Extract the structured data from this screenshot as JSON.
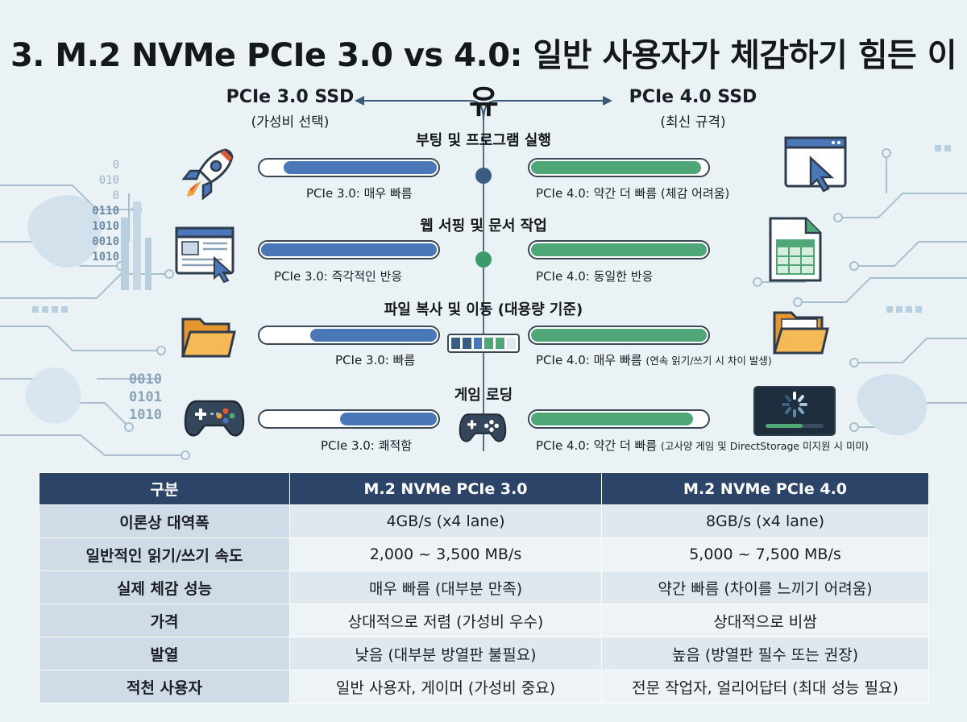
{
  "title": "3. M.2 NVMe PCIe 3.0 vs 4.0: 일반 사용자가 체감하기 힘든 이유",
  "left": {
    "head": "PCIe 3.0 SSD",
    "sub": "(가성비 선택)"
  },
  "right": {
    "head": "PCIe 4.0 SSD",
    "sub": "(최신 규격)"
  },
  "rows": [
    {
      "category": "부팅 및 프로그램 실행",
      "left_caption": "PCIe 3.0: 매우 빠름",
      "right_caption": "PCIe 4.0: 약간 더 빠름 (체감 어려움)",
      "left_fill": 0.87,
      "right_fill": 0.97
    },
    {
      "category": "웹 서핑 및 문서 작업",
      "left_caption": "PCIe 3.0: 즉각적인 반응",
      "right_caption": "PCIe 4.0: 동일한 반응",
      "left_fill": 1.0,
      "right_fill": 1.0
    },
    {
      "category": "파일 복사 및 이동 (대용량 기준)",
      "left_caption": "PCIe 3.0: 빠름",
      "right_caption_main": "PCIe 4.0: 매우 빠름",
      "right_caption_note": "(연속 읽기/쓰기 시 차이 발생)",
      "left_fill": 0.72,
      "right_fill": 1.0
    },
    {
      "category": "게임 로딩",
      "left_caption": "PCIe 3.0: 쾌적함",
      "right_caption_main": "PCIe 4.0: 약간 더 빠름",
      "right_caption_note": "(고사양 게임 및 DirectStorage 미지원 시 미미)",
      "left_fill": 0.55,
      "right_fill": 0.92
    }
  ],
  "binary_left_top": [
    "0",
    "010",
    "0",
    "0110",
    "1010",
    "0010",
    "1010"
  ],
  "binary_left_bottom": [
    "0010",
    "0101",
    "1010"
  ],
  "table": {
    "headers": [
      "구분",
      "M.2 NVMe PCIe 3.0",
      "M.2 NVMe PCIe 4.0"
    ],
    "rows": [
      [
        "이론상 대역폭",
        "4GB/s (x4 lane)",
        "8GB/s (x4 lane)"
      ],
      [
        "일반적인 읽기/쓰기 속도",
        "2,000 ~ 3,500 MB/s",
        "5,000 ~ 7,500 MB/s"
      ],
      [
        "실제 체감 성능",
        "매우 빠름 (대부분 만족)",
        "약간 빠름 (차이를 느끼기 어려움)"
      ],
      [
        "가격",
        "상대적으로 저렴 (가성비 우수)",
        "상대적으로 비쌈"
      ],
      [
        "발열",
        "낮음 (대부분 방열판 불필요)",
        "높음 (방열판 필수 또는 권장)"
      ],
      [
        "적천 사용자",
        "일반 사용자, 게이머 (가성비 중요)",
        "전문 작업자, 얼리어답터 (최대 성능 필요)"
      ]
    ]
  },
  "colors": {
    "pcie3": "#4a77b8",
    "pcie4": "#4fa676",
    "table_header": "#2c4468",
    "circuit": "#a9bfd0"
  },
  "icons": {
    "row1_left": "rocket-icon",
    "row1_right": "cursor-window-icon",
    "row2_left": "browser-cursor-icon",
    "row2_right": "spreadsheet-icon",
    "row3_left": "folder-icon",
    "row3_right": "folder-icon",
    "row4_left": "gamepad-icon",
    "row4_right": "loading-screen-icon"
  }
}
